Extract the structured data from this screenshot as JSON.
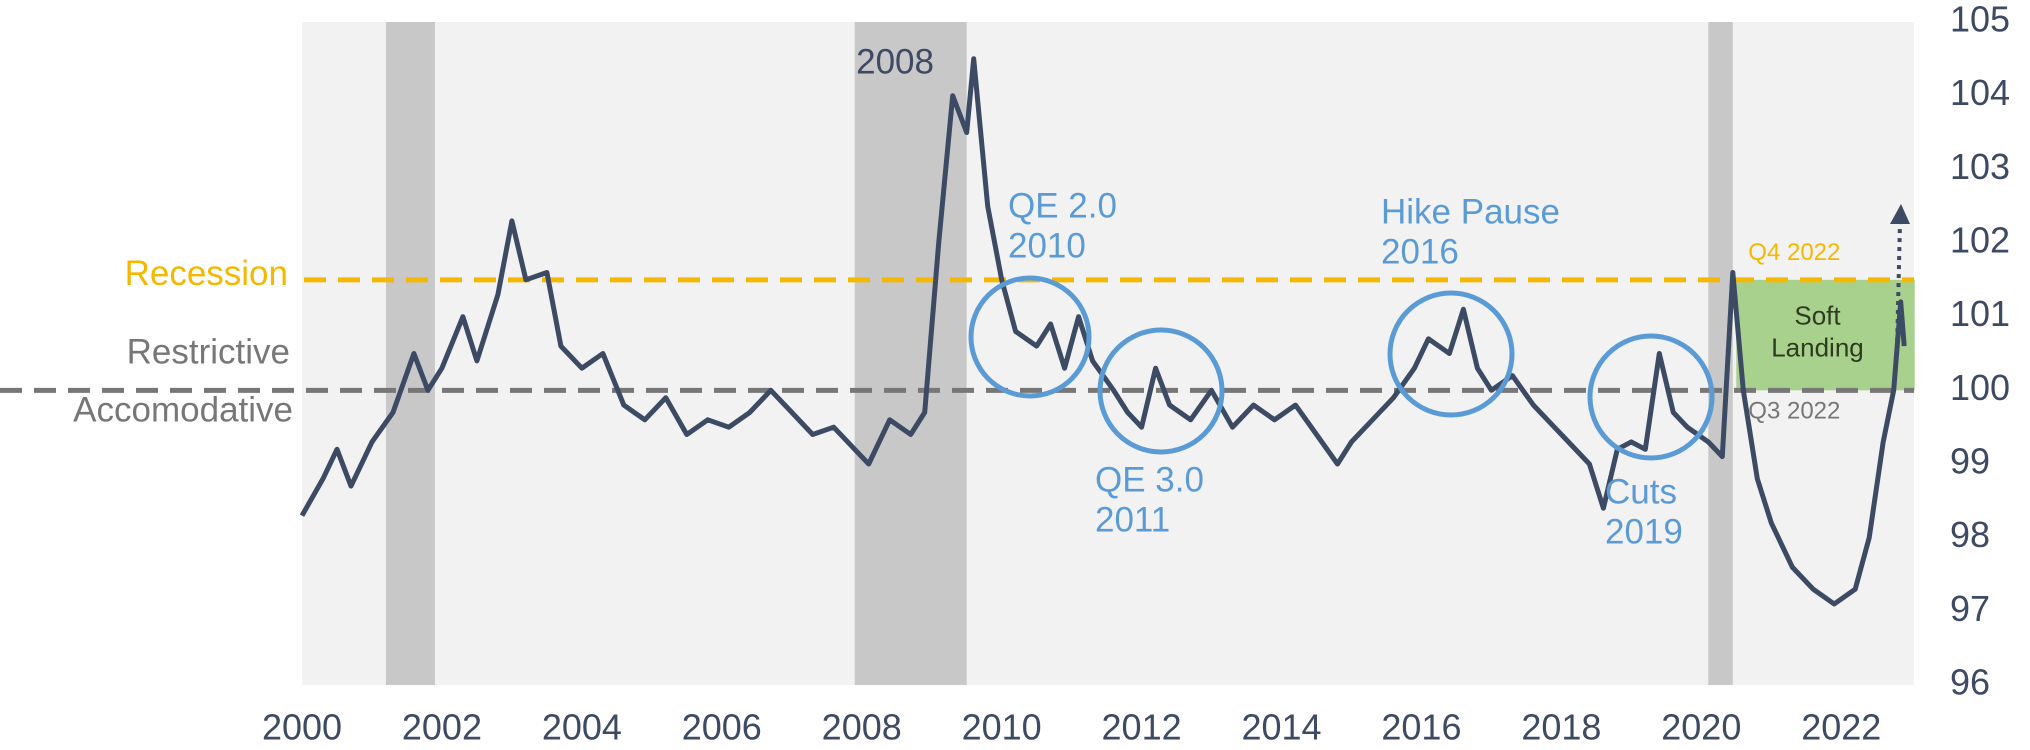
{
  "chart_data": {
    "type": "line",
    "xlim": [
      2000,
      2023.04
    ],
    "xticks": [
      2000,
      2002,
      2004,
      2006,
      2008,
      2010,
      2012,
      2014,
      2016,
      2018,
      2020,
      2022
    ],
    "ylim": [
      96,
      105
    ],
    "yticks": [
      96,
      97,
      98,
      99,
      100,
      101,
      102,
      103,
      104,
      105
    ],
    "shaded_periods": [
      [
        2001.2,
        2001.9
      ],
      [
        2007.9,
        2009.5
      ],
      [
        2020.1,
        2020.45
      ]
    ],
    "reference_lines": [
      {
        "labels": [
          "Recession"
        ],
        "value": 101.5,
        "color": "#f5b800"
      },
      {
        "labels": [
          "Restrictive",
          "Accomodative"
        ],
        "value": 100,
        "color": "#777777"
      }
    ],
    "soft_landing": {
      "labels": [
        "Soft",
        "Landing"
      ],
      "xlim": [
        2020.5,
        2023.05
      ],
      "ylim": [
        100,
        101.5
      ],
      "color": "#a9d18e",
      "top_label": "Q4 2022",
      "bottom_label": "Q3 2022"
    },
    "annotations": [
      {
        "lines": [
          "2008"
        ]
      },
      {
        "lines": [
          "QE 2.0",
          "2010"
        ]
      },
      {
        "lines": [
          "QE 3.0",
          "2011"
        ]
      },
      {
        "lines": [
          "Hike Pause",
          "2016"
        ]
      },
      {
        "lines": [
          "Cuts",
          "2019"
        ]
      }
    ],
    "series": [
      {
        "color": "#3d4a63",
        "x": [
          2000.0,
          2000.3,
          2000.5,
          2000.7,
          2001.0,
          2001.3,
          2001.6,
          2001.8,
          2002.0,
          2002.3,
          2002.5,
          2002.8,
          2003.0,
          2003.2,
          2003.5,
          2003.7,
          2004.0,
          2004.3,
          2004.6,
          2004.9,
          2005.2,
          2005.5,
          2005.8,
          2006.1,
          2006.4,
          2006.7,
          2007.0,
          2007.3,
          2007.6,
          2007.9,
          2008.1,
          2008.4,
          2008.7,
          2008.9,
          2009.1,
          2009.3,
          2009.5,
          2009.6,
          2009.8,
          2010.0,
          2010.2,
          2010.5,
          2010.7,
          2010.9,
          2011.1,
          2011.3,
          2011.6,
          2011.8,
          2012.0,
          2012.2,
          2012.4,
          2012.7,
          2013.0,
          2013.3,
          2013.6,
          2013.9,
          2014.2,
          2014.5,
          2014.8,
          2015.0,
          2015.3,
          2015.6,
          2015.9,
          2016.1,
          2016.4,
          2016.6,
          2016.8,
          2017.0,
          2017.3,
          2017.6,
          2017.9,
          2018.1,
          2018.4,
          2018.6,
          2018.8,
          2019.0,
          2019.2,
          2019.4,
          2019.6,
          2019.8,
          2020.1,
          2020.3,
          2020.45,
          2020.6,
          2020.8,
          2021.0,
          2021.3,
          2021.6,
          2021.9,
          2022.2,
          2022.4,
          2022.6,
          2022.75,
          2022.85,
          2022.9
        ],
        "values": [
          98.3,
          98.8,
          99.2,
          98.7,
          99.3,
          99.7,
          100.5,
          100.0,
          100.3,
          101.0,
          100.4,
          101.3,
          102.3,
          101.5,
          101.6,
          100.6,
          100.3,
          100.5,
          99.8,
          99.6,
          99.9,
          99.4,
          99.6,
          99.5,
          99.7,
          100.0,
          99.7,
          99.4,
          99.5,
          99.2,
          99.0,
          99.6,
          99.4,
          99.7,
          102.0,
          104.0,
          103.5,
          104.5,
          102.5,
          101.5,
          100.8,
          100.6,
          100.9,
          100.3,
          101.0,
          100.4,
          100.0,
          99.7,
          99.5,
          100.3,
          99.8,
          99.6,
          100.0,
          99.5,
          99.8,
          99.6,
          99.8,
          99.4,
          99.0,
          99.3,
          99.6,
          99.9,
          100.3,
          100.7,
          100.5,
          101.1,
          100.3,
          100.0,
          100.2,
          99.8,
          99.5,
          99.3,
          99.0,
          98.4,
          99.2,
          99.3,
          99.2,
          100.5,
          99.7,
          99.5,
          99.3,
          99.1,
          101.6,
          100.0,
          98.8,
          98.2,
          97.6,
          97.3,
          97.1,
          97.3,
          98.0,
          99.3,
          100.0,
          101.2,
          100.6
        ]
      }
    ]
  }
}
